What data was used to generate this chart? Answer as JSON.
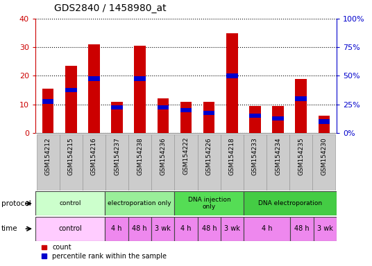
{
  "title": "GDS2840 / 1458980_at",
  "samples": [
    "GSM154212",
    "GSM154215",
    "GSM154216",
    "GSM154237",
    "GSM154238",
    "GSM154236",
    "GSM154222",
    "GSM154226",
    "GSM154218",
    "GSM154233",
    "GSM154234",
    "GSM154235",
    "GSM154230"
  ],
  "counts": [
    15.5,
    23.5,
    31.0,
    11.0,
    30.5,
    12.0,
    11.0,
    11.0,
    35.0,
    9.5,
    9.5,
    19.0,
    6.0
  ],
  "percentiles": [
    27.5,
    37.5,
    47.5,
    22.5,
    47.5,
    22.5,
    20.0,
    17.5,
    50.0,
    15.0,
    12.5,
    30.0,
    10.0
  ],
  "bar_color": "#cc0000",
  "pct_color": "#0000cc",
  "ylim_left": [
    0,
    40
  ],
  "ylim_right": [
    0,
    100
  ],
  "yticks_left": [
    0,
    10,
    20,
    30,
    40
  ],
  "yticks_right": [
    0,
    25,
    50,
    75,
    100
  ],
  "ytick_labels_left": [
    "0",
    "10",
    "20",
    "30",
    "40"
  ],
  "ytick_labels_right": [
    "0%",
    "25%",
    "50%",
    "75%",
    "100%"
  ],
  "protocol_groups": [
    {
      "label": "control",
      "start": 0,
      "end": 3,
      "color": "#ccffcc"
    },
    {
      "label": "electroporation only",
      "start": 3,
      "end": 6,
      "color": "#99ee99"
    },
    {
      "label": "DNA injection\nonly",
      "start": 6,
      "end": 9,
      "color": "#55dd55"
    },
    {
      "label": "DNA electroporation",
      "start": 9,
      "end": 13,
      "color": "#44cc44"
    }
  ],
  "time_groups": [
    {
      "label": "control",
      "start": 0,
      "end": 3,
      "color": "#ffaaff"
    },
    {
      "label": "4 h",
      "start": 3,
      "end": 4,
      "color": "#ee88ee"
    },
    {
      "label": "48 h",
      "start": 4,
      "end": 5,
      "color": "#ee88ee"
    },
    {
      "label": "3 wk",
      "start": 5,
      "end": 6,
      "color": "#ee88ee"
    },
    {
      "label": "4 h",
      "start": 6,
      "end": 7,
      "color": "#ee88ee"
    },
    {
      "label": "48 h",
      "start": 7,
      "end": 8,
      "color": "#ee88ee"
    },
    {
      "label": "3 wk",
      "start": 8,
      "end": 9,
      "color": "#ee88ee"
    },
    {
      "label": "4 h",
      "start": 9,
      "end": 11,
      "color": "#ee88ee"
    },
    {
      "label": "48 h",
      "start": 11,
      "end": 12,
      "color": "#ee88ee"
    },
    {
      "label": "3 wk",
      "start": 12,
      "end": 13,
      "color": "#ee88ee"
    }
  ],
  "bar_width": 0.5,
  "pct_bar_height": 1.5,
  "background_color": "#ffffff",
  "left_axis_color": "#cc0000",
  "right_axis_color": "#0000cc"
}
